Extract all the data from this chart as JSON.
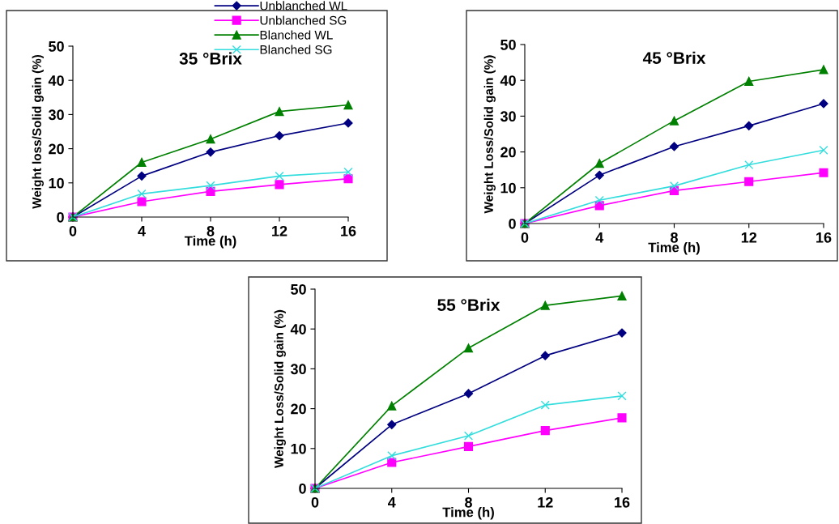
{
  "chart_data": [
    {
      "type": "line",
      "title": "35 °Brix",
      "xlabel": "Time (h)",
      "ylabel": "Weight loss/Solid gain (%)",
      "x": [
        0,
        4,
        8,
        12,
        16
      ],
      "xlim": [
        0,
        16
      ],
      "xticks": [
        0,
        4,
        8,
        12,
        16
      ],
      "ylim": [
        0,
        50
      ],
      "yticks": [
        0,
        10,
        20,
        30,
        40,
        50
      ],
      "grid": false,
      "legend": "top right",
      "series": [
        {
          "name": "Unblanched WL",
          "color": "#000080",
          "marker": "diamond",
          "values": [
            0,
            12,
            19,
            23.8,
            27.5
          ]
        },
        {
          "name": "Unblanched SG",
          "color": "#ff00ff",
          "marker": "square",
          "values": [
            0,
            4.5,
            7.5,
            9.5,
            11.2
          ]
        },
        {
          "name": "Blanched WL",
          "color": "#008000",
          "marker": "triangle",
          "values": [
            0,
            16,
            22.8,
            30.9,
            32.8
          ]
        },
        {
          "name": "Blanched SG",
          "color": "#33dddd",
          "marker": "cross",
          "values": [
            0,
            6.8,
            9.2,
            12,
            13.2
          ]
        }
      ]
    },
    {
      "type": "line",
      "title": "45 °Brix",
      "xlabel": "Time (h)",
      "ylabel": "Weight Loss/Solid gain (%)",
      "x": [
        0,
        4,
        8,
        12,
        16
      ],
      "xlim": [
        0,
        16
      ],
      "xticks": [
        0,
        4,
        8,
        12,
        16
      ],
      "ylim": [
        0,
        50
      ],
      "yticks": [
        0,
        10,
        20,
        30,
        40,
        50
      ],
      "grid": false,
      "series": [
        {
          "color": "#000080",
          "marker": "diamond",
          "values": [
            0,
            13.5,
            21.5,
            27.3,
            33.5
          ]
        },
        {
          "color": "#ff00ff",
          "marker": "square",
          "values": [
            0,
            5,
            9.2,
            11.7,
            14.2
          ]
        },
        {
          "color": "#008000",
          "marker": "triangle",
          "values": [
            0,
            16.8,
            28.7,
            39.7,
            43
          ]
        },
        {
          "color": "#33dddd",
          "marker": "cross",
          "values": [
            0,
            6.5,
            10.5,
            16.4,
            20.5
          ]
        }
      ]
    },
    {
      "type": "line",
      "title": "55 °Brix",
      "xlabel": "Time (h)",
      "ylabel": "Weight Loss/Solid gain (%)",
      "x": [
        0,
        4,
        8,
        12,
        16
      ],
      "xlim": [
        0,
        16
      ],
      "xticks": [
        0,
        4,
        8,
        12,
        16
      ],
      "ylim": [
        0,
        50
      ],
      "yticks": [
        0,
        10,
        20,
        30,
        40,
        50
      ],
      "grid": false,
      "series": [
        {
          "color": "#000080",
          "marker": "diamond",
          "values": [
            0,
            16,
            23.8,
            33.3,
            39
          ]
        },
        {
          "color": "#ff00ff",
          "marker": "square",
          "values": [
            0,
            6.5,
            10.5,
            14.5,
            17.7
          ]
        },
        {
          "color": "#008000",
          "marker": "triangle",
          "values": [
            0,
            20.7,
            35.2,
            45.9,
            48.3
          ]
        },
        {
          "color": "#33dddd",
          "marker": "cross",
          "values": [
            0,
            8.2,
            13.2,
            20.9,
            23.2
          ]
        }
      ]
    }
  ]
}
